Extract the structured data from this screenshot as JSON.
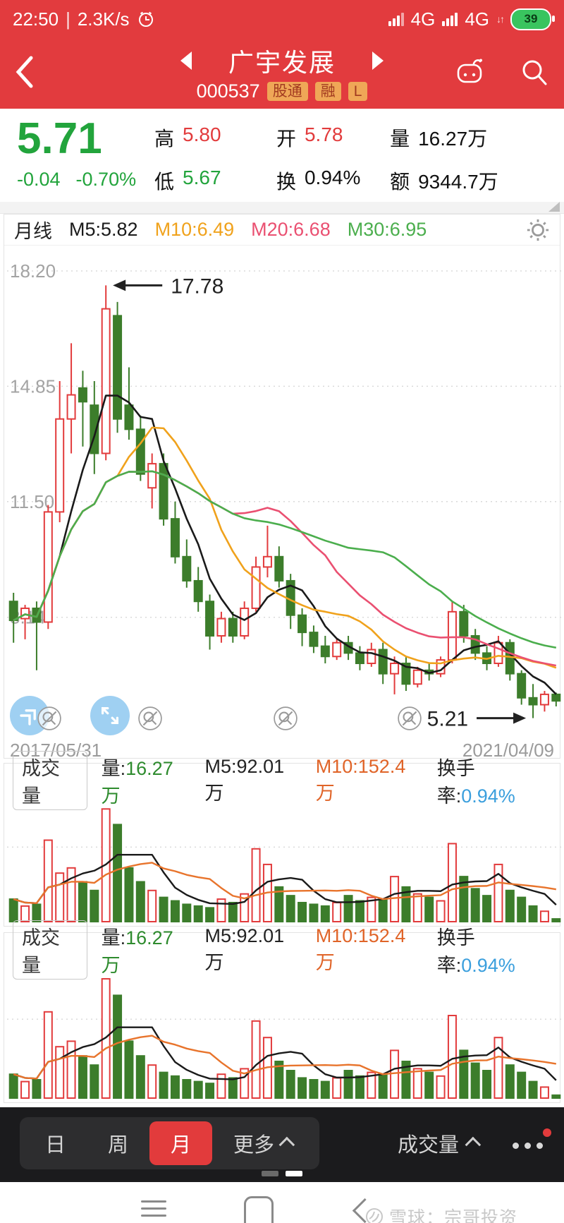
{
  "status_bar": {
    "time": "22:50",
    "separator": "|",
    "net_speed": "2.3K/s",
    "network1": "4G",
    "network2": "4G",
    "battery_percent": "39"
  },
  "header": {
    "title": "广宇发展",
    "code": "000537",
    "badges": [
      "股通",
      "融",
      "L"
    ]
  },
  "quote": {
    "price": "5.71",
    "change": "-0.04",
    "change_pct": "-0.70%",
    "fields": [
      {
        "label": "高",
        "value": "5.80",
        "color": "red"
      },
      {
        "label": "开",
        "value": "5.78",
        "color": "red"
      },
      {
        "label": "量",
        "value": "16.27万",
        "color": "black"
      },
      {
        "label": "低",
        "value": "5.67",
        "color": "green"
      },
      {
        "label": "换",
        "value": "0.94%",
        "color": "black"
      },
      {
        "label": "额",
        "value": "9344.7万",
        "color": "black"
      }
    ]
  },
  "kline_header": {
    "period_label": "月线"
  },
  "volume_header": {
    "title": "成交量",
    "volume_label": "量:",
    "volume_value": "16.27万",
    "ma5": "M5:92.01万",
    "ma10": "M10:152.4万",
    "turnover_label": "换手率:",
    "turnover_value": "0.94%"
  },
  "bottom_tabs": {
    "day": "日",
    "week": "周",
    "month": "月",
    "more": "更多",
    "selected": "月",
    "indicator": "成交量"
  },
  "watermark": {
    "source": "雪球：宗哥投资"
  },
  "colors": {
    "app_red": "#e23b3e",
    "up_red": "#e23b3c",
    "down_green": "#3c7d2b",
    "price_green": "#22a43c",
    "ma5": "#1a1a1a",
    "ma10": "#f0a21c",
    "ma20": "#ea5071",
    "ma30": "#4bae4d",
    "vol_ma5": "#1a1a1a",
    "vol_ma10": "#e8742c",
    "turnover_blue": "#3b9fdd",
    "axis_gray": "#a3a3a3"
  },
  "chart_data": [
    {
      "id": "kline",
      "type": "candlestick",
      "period": "monthly",
      "x_start_label": "2017/05/31",
      "x_end_label": "2021/04/09",
      "ylim": [
        4.75,
        18.65
      ],
      "yticks": [
        18.2,
        14.85,
        11.5,
        8.14
      ],
      "ytick_labels": [
        "18.20",
        "14.85",
        "11.50",
        "8.14"
      ],
      "grid": "dotted",
      "annotations": [
        {
          "text": "17.78",
          "value": 17.78,
          "candle_index": 8,
          "side": "left"
        },
        {
          "text": "5.21",
          "value": 5.21,
          "candle_index": 45,
          "side": "right"
        }
      ],
      "ma": [
        {
          "name": "M5",
          "window": 5,
          "color": "#1a1a1a",
          "legend": "M5:5.82"
        },
        {
          "name": "M10",
          "window": 10,
          "color": "#f0a21c",
          "legend": "M10:6.49"
        },
        {
          "name": "M20",
          "window": 20,
          "color": "#ea5071",
          "legend": "M20:6.68"
        },
        {
          "name": "M30",
          "window": 30,
          "color": "#4bae4d",
          "legend": "M30:6.95"
        }
      ],
      "colors": {
        "up": "#e23b3c",
        "down": "#3c7d2b"
      },
      "ohlc": [
        [
          8.6,
          8.85,
          7.4,
          8.05
        ],
        [
          8.1,
          8.5,
          7.5,
          8.4
        ],
        [
          8.4,
          8.6,
          6.6,
          8.0
        ],
        [
          8.0,
          11.4,
          7.8,
          11.2
        ],
        [
          11.2,
          15.0,
          10.9,
          13.9
        ],
        [
          13.9,
          16.1,
          12.9,
          14.6
        ],
        [
          14.8,
          15.3,
          13.1,
          14.4
        ],
        [
          14.3,
          15.0,
          12.3,
          12.9
        ],
        [
          12.9,
          17.78,
          12.7,
          17.1
        ],
        [
          16.9,
          17.3,
          13.5,
          13.9
        ],
        [
          14.3,
          15.4,
          13.3,
          13.6
        ],
        [
          13.6,
          14.0,
          12.1,
          12.3
        ],
        [
          11.9,
          12.9,
          11.3,
          12.6
        ],
        [
          12.6,
          12.9,
          10.8,
          11.0
        ],
        [
          11.0,
          11.5,
          9.7,
          9.9
        ],
        [
          9.9,
          10.4,
          9.0,
          9.2
        ],
        [
          9.2,
          9.6,
          8.3,
          8.6
        ],
        [
          8.6,
          8.8,
          7.2,
          7.6
        ],
        [
          7.6,
          8.3,
          7.4,
          8.1
        ],
        [
          8.1,
          8.3,
          7.4,
          7.6
        ],
        [
          7.6,
          8.6,
          7.5,
          8.4
        ],
        [
          8.4,
          9.9,
          8.3,
          9.6
        ],
        [
          9.6,
          10.8,
          9.3,
          9.9
        ],
        [
          9.9,
          10.2,
          9.0,
          9.2
        ],
        [
          9.2,
          9.4,
          7.8,
          8.2
        ],
        [
          8.2,
          8.4,
          7.3,
          7.7
        ],
        [
          7.7,
          7.9,
          7.1,
          7.3
        ],
        [
          7.3,
          7.6,
          6.8,
          7.0
        ],
        [
          7.0,
          7.5,
          6.9,
          7.4
        ],
        [
          7.4,
          7.6,
          6.9,
          7.1
        ],
        [
          7.1,
          7.3,
          6.6,
          6.8
        ],
        [
          6.8,
          7.4,
          6.7,
          7.2
        ],
        [
          7.2,
          7.4,
          6.2,
          6.5
        ],
        [
          6.5,
          7.0,
          5.9,
          6.8
        ],
        [
          6.8,
          7.0,
          6.0,
          6.2
        ],
        [
          6.2,
          6.7,
          6.1,
          6.6
        ],
        [
          6.6,
          6.8,
          6.3,
          6.5
        ],
        [
          6.5,
          7.0,
          6.4,
          6.9
        ],
        [
          6.9,
          8.6,
          6.8,
          8.3
        ],
        [
          8.3,
          8.5,
          7.4,
          7.6
        ],
        [
          7.6,
          7.8,
          6.9,
          7.1
        ],
        [
          7.1,
          7.3,
          6.6,
          6.8
        ],
        [
          6.8,
          7.6,
          6.7,
          7.4
        ],
        [
          7.4,
          7.5,
          6.3,
          6.5
        ],
        [
          6.5,
          6.6,
          5.6,
          5.8
        ],
        [
          5.8,
          6.2,
          5.21,
          5.6
        ],
        [
          5.6,
          6.0,
          5.4,
          5.9
        ],
        [
          5.9,
          5.95,
          5.55,
          5.71
        ]
      ]
    },
    {
      "id": "volume",
      "type": "bar",
      "unit": "万",
      "ylim": [
        0,
        700
      ],
      "gridline_value": 430,
      "values": [
        130,
        90,
        100,
        470,
        280,
        310,
        230,
        180,
        650,
        560,
        310,
        230,
        180,
        140,
        120,
        100,
        90,
        80,
        130,
        110,
        160,
        420,
        330,
        200,
        150,
        110,
        100,
        90,
        110,
        150,
        120,
        140,
        130,
        260,
        200,
        160,
        140,
        120,
        450,
        260,
        190,
        150,
        330,
        180,
        140,
        90,
        60,
        16
      ],
      "ma": [
        {
          "name": "M5",
          "window": 5,
          "color": "#1a1a1a",
          "legend": "M5:92.01万"
        },
        {
          "name": "M10",
          "window": 10,
          "color": "#e8742c",
          "legend": "M10:152.4万"
        }
      ],
      "note": "rendered twice (two identical volume panels); bar color follows candle direction"
    }
  ]
}
